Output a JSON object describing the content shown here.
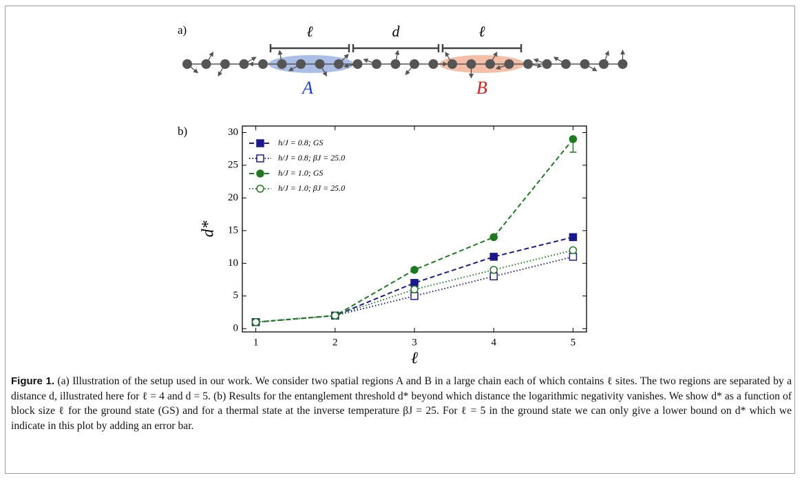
{
  "panel_labels": [
    "a)",
    "b)"
  ],
  "diagram": {
    "block_labels": [
      "ℓ",
      "d",
      "ℓ"
    ],
    "region_labels": [
      "A",
      "B"
    ]
  },
  "chart_data": {
    "type": "line",
    "xlabel": "ℓ",
    "ylabel": "d*",
    "x": [
      1,
      2,
      3,
      4,
      5
    ],
    "xlim": [
      0.83,
      5.17
    ],
    "xticks": [
      1,
      2,
      3,
      4,
      5
    ],
    "ylim": [
      -0.5,
      31
    ],
    "yticks": [
      0,
      5,
      10,
      15,
      20,
      25,
      30
    ],
    "legend": "upper left",
    "series": [
      {
        "name": "h/J = 0.8;  GS",
        "color": "#1a1a8c",
        "line_style": "dashed",
        "marker": "square",
        "filled": true,
        "values": [
          1,
          2,
          7,
          11,
          14
        ]
      },
      {
        "name": "h/J = 0.8;  βJ = 25.0",
        "color": "#1a1a8c",
        "line_style": "dotted",
        "marker": "square",
        "filled": false,
        "values": [
          1,
          2,
          5,
          8,
          11
        ]
      },
      {
        "name": "h/J = 1.0;  GS",
        "color": "#1f7a1f",
        "line_style": "dashed",
        "marker": "circle",
        "filled": true,
        "values": [
          1,
          2,
          9,
          14,
          29
        ],
        "error_lower": [
          null,
          null,
          null,
          null,
          2
        ]
      },
      {
        "name": "h/J = 1.0;  βJ = 25.0",
        "color": "#1f7a1f",
        "line_style": "dotted",
        "marker": "circle",
        "filled": false,
        "values": [
          1,
          2,
          6,
          9,
          12
        ]
      }
    ]
  },
  "caption": {
    "label": "Figure 1.",
    "text": "(a) Illustration of the setup used in our work. We consider two spatial regions A and B in a large chain each of which contains ℓ sites. The two regions are separated by a distance d, illustrated here for ℓ = 4 and d = 5. (b) Results for the entanglement threshold d* beyond which distance the logarithmic negativity vanishes. We show d* as a function of block size ℓ for the ground state (GS) and for a thermal state at the inverse temperature βJ = 25. For ℓ = 5 in the ground state we can only give a lower bound on d* which we indicate in this plot by adding an error bar."
  }
}
